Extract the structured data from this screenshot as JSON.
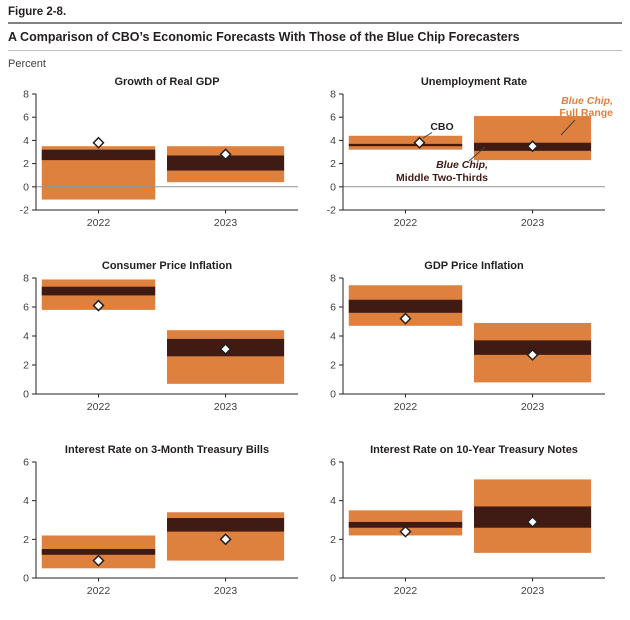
{
  "figure": {
    "label": "Figure 2-8.",
    "title": "A Comparison of CBO’s Economic Forecasts With Those of the Blue Chip Forecasters",
    "unit_label": "Percent"
  },
  "legend": {
    "cbo_label": "CBO",
    "full_range_label_line1": "Blue Chip,",
    "full_range_label_line2": "Full Range",
    "middle_label_line1": "Blue Chip,",
    "middle_label_line2": "Middle Two-Thirds"
  },
  "colors": {
    "blue_chip_full_range": "#df813e",
    "blue_chip_middle_two_thirds": "#401b14",
    "cbo_marker_fill": "#ffffff",
    "cbo_marker_stroke": "#231f20",
    "axis": "#231f20",
    "tick_label": "#414042",
    "zero_line": "#939598",
    "callout_line": "#404040"
  },
  "chart_data": [
    {
      "type": "range-bar",
      "title": "Growth of Real GDP",
      "categories": [
        "2022",
        "2023"
      ],
      "ylim": [
        -2,
        8
      ],
      "yticks": [
        -2,
        0,
        2,
        4,
        6,
        8
      ],
      "zero_line": true,
      "legend_callouts": false,
      "series": [
        {
          "name": "Blue Chip, Full Range",
          "type": "range",
          "ranges": [
            [
              -1.1,
              3.5
            ],
            [
              0.4,
              3.5
            ]
          ]
        },
        {
          "name": "Blue Chip, Middle Two-Thirds",
          "type": "range",
          "ranges": [
            [
              2.3,
              3.2
            ],
            [
              1.4,
              2.7
            ]
          ]
        },
        {
          "name": "CBO",
          "type": "point",
          "values": [
            3.8,
            2.8
          ]
        }
      ]
    },
    {
      "type": "range-bar",
      "title": "Unemployment Rate",
      "categories": [
        "2022",
        "2023"
      ],
      "ylim": [
        -2,
        8
      ],
      "yticks": [
        -2,
        0,
        2,
        4,
        6,
        8
      ],
      "zero_line": true,
      "legend_callouts": true,
      "series": [
        {
          "name": "Blue Chip, Full Range",
          "type": "range",
          "ranges": [
            [
              3.2,
              4.4
            ],
            [
              2.3,
              6.1
            ]
          ]
        },
        {
          "name": "Blue Chip, Middle Two-Thirds",
          "type": "range",
          "ranges": [
            [
              3.5,
              3.7
            ],
            [
              3.1,
              3.8
            ]
          ]
        },
        {
          "name": "CBO",
          "type": "point",
          "values": [
            3.8,
            3.5
          ]
        }
      ]
    },
    {
      "type": "range-bar",
      "title": "Consumer Price Inflation",
      "categories": [
        "2022",
        "2023"
      ],
      "ylim": [
        0,
        8
      ],
      "yticks": [
        0,
        2,
        4,
        6,
        8
      ],
      "zero_line": false,
      "legend_callouts": false,
      "series": [
        {
          "name": "Blue Chip, Full Range",
          "type": "range",
          "ranges": [
            [
              5.8,
              7.9
            ],
            [
              0.7,
              4.4
            ]
          ]
        },
        {
          "name": "Blue Chip, Middle Two-Thirds",
          "type": "range",
          "ranges": [
            [
              6.8,
              7.4
            ],
            [
              2.6,
              3.8
            ]
          ]
        },
        {
          "name": "CBO",
          "type": "point",
          "values": [
            6.1,
            3.1
          ]
        }
      ]
    },
    {
      "type": "range-bar",
      "title": "GDP Price Inflation",
      "categories": [
        "2022",
        "2023"
      ],
      "ylim": [
        0,
        8
      ],
      "yticks": [
        0,
        2,
        4,
        6,
        8
      ],
      "zero_line": false,
      "legend_callouts": false,
      "series": [
        {
          "name": "Blue Chip, Full Range",
          "type": "range",
          "ranges": [
            [
              4.7,
              7.5
            ],
            [
              0.8,
              4.9
            ]
          ]
        },
        {
          "name": "Blue Chip, Middle Two-Thirds",
          "type": "range",
          "ranges": [
            [
              5.6,
              6.5
            ],
            [
              2.7,
              3.7
            ]
          ]
        },
        {
          "name": "CBO",
          "type": "point",
          "values": [
            5.2,
            2.7
          ]
        }
      ]
    },
    {
      "type": "range-bar",
      "title": "Interest Rate on 3-Month Treasury Bills",
      "categories": [
        "2022",
        "2023"
      ],
      "ylim": [
        0,
        6
      ],
      "yticks": [
        0,
        2,
        4,
        6
      ],
      "zero_line": false,
      "legend_callouts": false,
      "series": [
        {
          "name": "Blue Chip, Full Range",
          "type": "range",
          "ranges": [
            [
              0.5,
              2.2
            ],
            [
              0.9,
              3.4
            ]
          ]
        },
        {
          "name": "Blue Chip, Middle Two-Thirds",
          "type": "range",
          "ranges": [
            [
              1.2,
              1.5
            ],
            [
              2.4,
              3.1
            ]
          ]
        },
        {
          "name": "CBO",
          "type": "point",
          "values": [
            0.9,
            2.0
          ]
        }
      ]
    },
    {
      "type": "range-bar",
      "title": "Interest Rate on 10-Year Treasury Notes",
      "categories": [
        "2022",
        "2023"
      ],
      "ylim": [
        0,
        6
      ],
      "yticks": [
        0,
        2,
        4,
        6
      ],
      "zero_line": false,
      "legend_callouts": false,
      "series": [
        {
          "name": "Blue Chip, Full Range",
          "type": "range",
          "ranges": [
            [
              2.2,
              3.5
            ],
            [
              1.3,
              5.1
            ]
          ]
        },
        {
          "name": "Blue Chip, Middle Two-Thirds",
          "type": "range",
          "ranges": [
            [
              2.6,
              2.9
            ],
            [
              2.6,
              3.7
            ]
          ]
        },
        {
          "name": "CBO",
          "type": "point",
          "values": [
            2.4,
            2.9
          ]
        }
      ]
    }
  ]
}
